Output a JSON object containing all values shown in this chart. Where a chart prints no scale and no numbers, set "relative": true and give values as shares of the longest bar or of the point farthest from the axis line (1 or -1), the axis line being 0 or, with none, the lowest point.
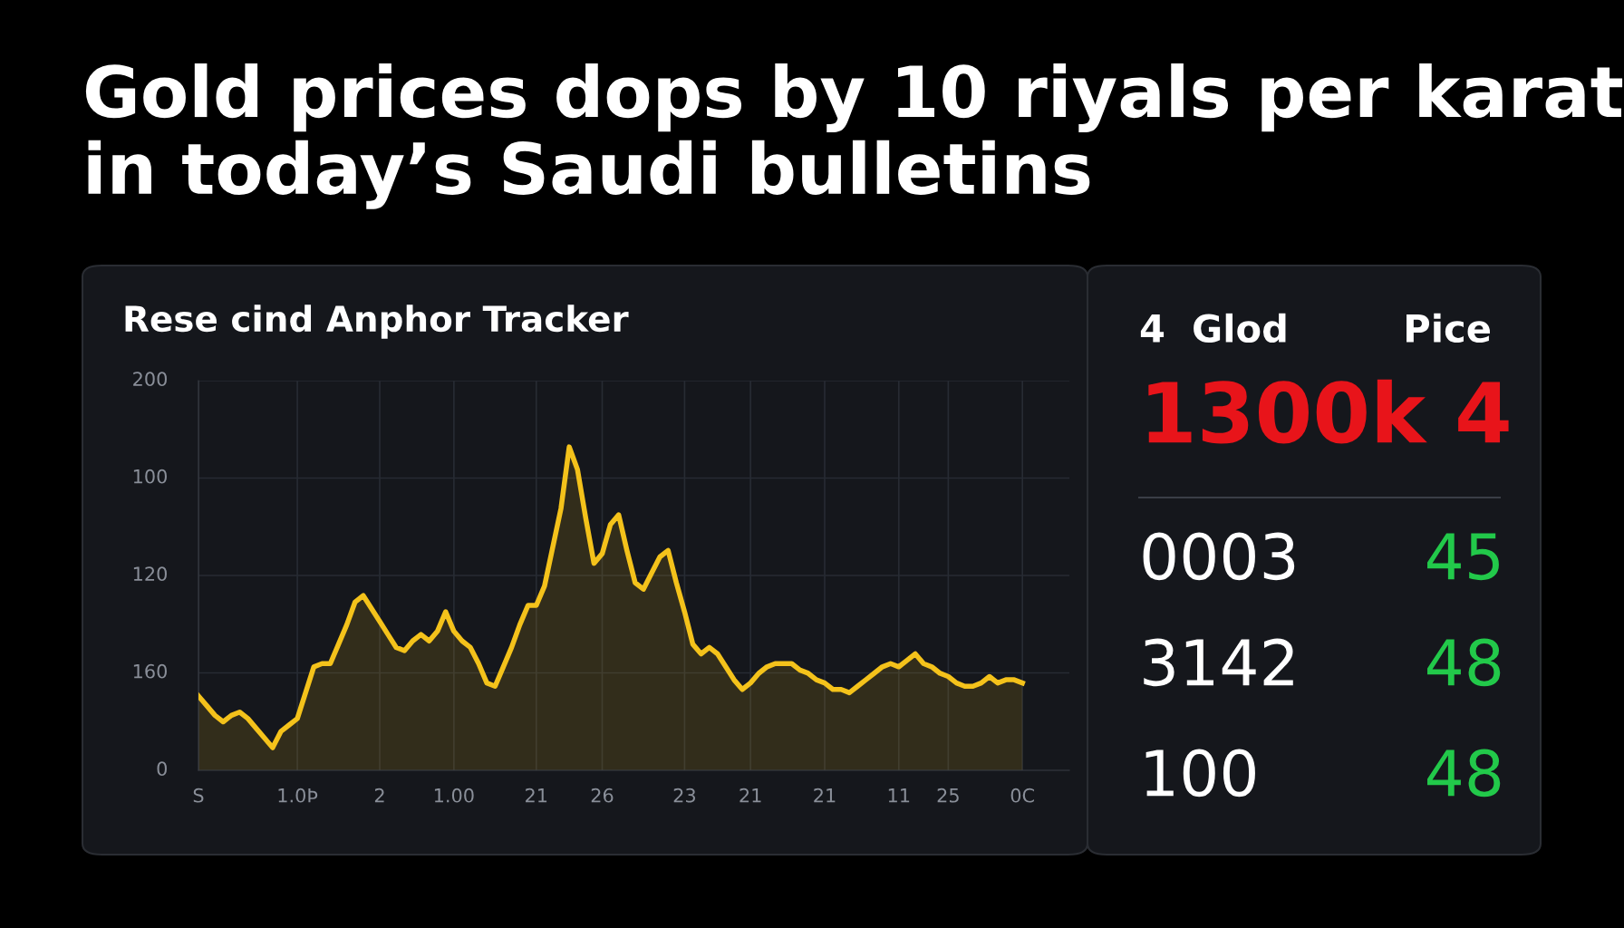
{
  "chart_data": [
    {
      "type": "area",
      "title": "Gold prices dops by 10 riyals per karat\nin today’s Saudi bulletins",
      "subtitle": "Rese cind Anphor Tracker",
      "relative": true,
      "categories": [
        "S",
        null,
        null,
        null,
        null,
        null,
        null,
        null,
        null,
        null,
        null,
        null,
        "1.0Þ",
        null,
        null,
        null,
        null,
        null,
        null,
        null,
        null,
        null,
        "2",
        null,
        null,
        null,
        null,
        null,
        null,
        null,
        null,
        "1.00",
        null,
        null,
        null,
        null,
        null,
        null,
        null,
        null,
        null,
        "21",
        null,
        null,
        null,
        null,
        null,
        null,
        null,
        "26",
        null,
        null,
        null,
        null,
        null,
        null,
        null,
        null,
        null,
        "23",
        null,
        null,
        null,
        null,
        null,
        null,
        null,
        "21",
        null,
        null,
        null,
        null,
        null,
        null,
        null,
        null,
        "21",
        null,
        null,
        null,
        null,
        null,
        null,
        null,
        null,
        "11",
        null,
        null,
        null,
        null,
        null,
        "25",
        null,
        null,
        null,
        null,
        null,
        null,
        null,
        null,
        "0C"
      ],
      "series": [
        {
          "color": "#f4c21b",
          "values": [
            0.23,
            0.2,
            0.17,
            0.15,
            0.17,
            0.18,
            0.16,
            0.13,
            0.1,
            0.07,
            0.12,
            0.14,
            0.16,
            0.24,
            0.32,
            0.33,
            0.33,
            0.39,
            0.45,
            0.52,
            0.54,
            0.5,
            0.46,
            0.42,
            0.38,
            0.37,
            0.4,
            0.42,
            0.4,
            0.43,
            0.49,
            0.43,
            0.4,
            0.38,
            0.33,
            0.27,
            0.26,
            0.32,
            0.38,
            0.45,
            0.51,
            0.51,
            0.57,
            0.69,
            0.81,
            1,
            0.93,
            0.78,
            0.64,
            0.67,
            0.76,
            0.79,
            0.68,
            0.58,
            0.56,
            0.61,
            0.66,
            0.68,
            0.58,
            0.49,
            0.39,
            0.36,
            0.38,
            0.36,
            0.32,
            0.28,
            0.25,
            0.27,
            0.3,
            0.32,
            0.33,
            0.33,
            0.33,
            0.31,
            0.3,
            0.28,
            0.27,
            0.25,
            0.25,
            0.24,
            0.26,
            0.28,
            0.3,
            0.32,
            0.33,
            0.32,
            0.34,
            0.36,
            0.33,
            0.32,
            0.3,
            0.29,
            0.27,
            0.26,
            0.26,
            0.27,
            0.29,
            0.27,
            0.28,
            0.28,
            0.27
          ]
        }
      ],
      "annotations": [
        "200",
        "100",
        "120",
        "160",
        "0"
      ],
      "grid": true
    },
    {
      "type": "other",
      "annotations": [
        "4  Glod",
        "Pice",
        "1300k 4",
        "0003",
        "45",
        "3142",
        "48",
        "100",
        "48"
      ],
      "colors": [
        "#ffffff",
        "#ffffff",
        "#e8141a",
        "#ffffff",
        "#22c94a",
        "#ffffff",
        "#22c94a",
        "#ffffff",
        "#22c94a"
      ]
    }
  ]
}
